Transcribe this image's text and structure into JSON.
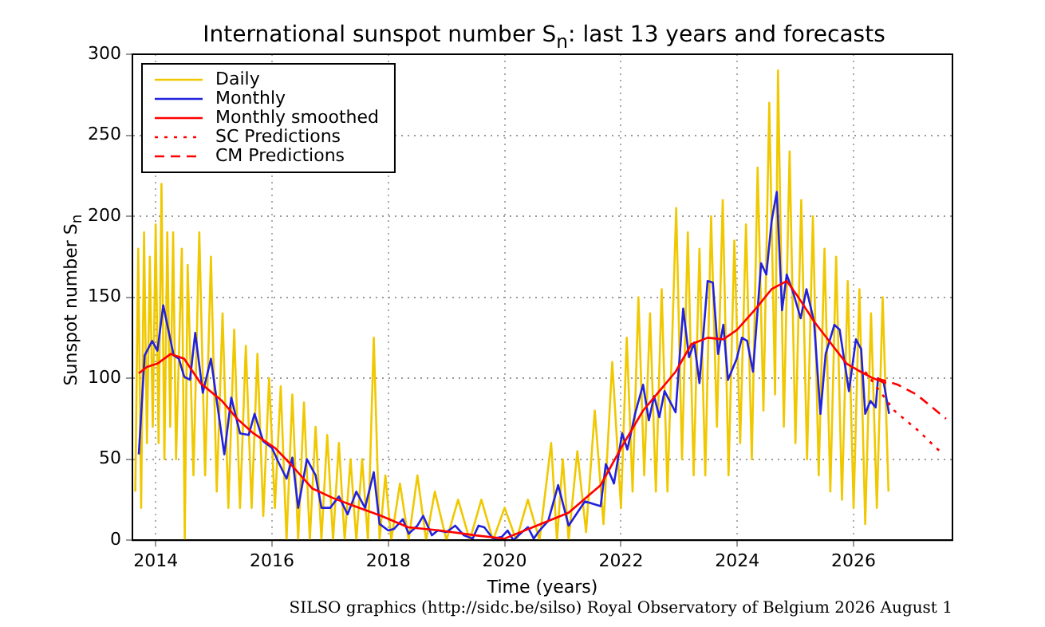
{
  "chart_data": {
    "type": "line",
    "title": "International sunspot number S$_{n}$: last 13 years and forecasts",
    "xlabel": "Time (years)",
    "ylabel": "Sunspot number S$_{n}$",
    "annotations": [
      "SILSO graphics (http://sidc.be/silso)  Royal Observatory of Belgium  2026 August 1"
    ],
    "xlim": [
      2013.6,
      2027.7
    ],
    "xticks": [
      2014,
      2016,
      2018,
      2020,
      2022,
      2024,
      2026
    ],
    "ylim": [
      0,
      300
    ],
    "yticks": [
      0,
      50,
      100,
      150,
      200,
      250,
      300
    ],
    "grid": true,
    "legend": "top left",
    "marker": "none",
    "series": [
      {
        "name": "Daily",
        "color": "#f0c800",
        "line_style": "solid",
        "x": [
          2013.65,
          2013.7,
          2013.75,
          2013.8,
          2013.85,
          2013.9,
          2013.95,
          2014.0,
          2014.05,
          2014.1,
          2014.15,
          2014.2,
          2014.25,
          2014.3,
          2014.35,
          2014.45,
          2014.5,
          2014.55,
          2014.65,
          2014.75,
          2014.85,
          2014.95,
          2015.05,
          2015.15,
          2015.25,
          2015.35,
          2015.45,
          2015.55,
          2015.65,
          2015.75,
          2015.85,
          2015.95,
          2016.05,
          2016.15,
          2016.25,
          2016.35,
          2016.45,
          2016.55,
          2016.65,
          2016.75,
          2016.85,
          2016.95,
          2017.05,
          2017.15,
          2017.25,
          2017.35,
          2017.45,
          2017.55,
          2017.65,
          2017.75,
          2017.85,
          2017.95,
          2018.05,
          2018.2,
          2018.35,
          2018.5,
          2018.65,
          2018.8,
          2019.0,
          2019.2,
          2019.4,
          2019.6,
          2019.8,
          2020.0,
          2020.2,
          2020.4,
          2020.6,
          2020.8,
          2020.9,
          2021.0,
          2021.1,
          2021.25,
          2021.4,
          2021.55,
          2021.7,
          2021.85,
          2022.0,
          2022.1,
          2022.2,
          2022.3,
          2022.4,
          2022.5,
          2022.6,
          2022.7,
          2022.8,
          2022.95,
          2023.05,
          2023.15,
          2023.25,
          2023.35,
          2023.45,
          2023.55,
          2023.65,
          2023.75,
          2023.85,
          2023.95,
          2024.05,
          2024.15,
          2024.25,
          2024.35,
          2024.45,
          2024.55,
          2024.65,
          2024.7,
          2024.8,
          2024.9,
          2025.0,
          2025.1,
          2025.2,
          2025.3,
          2025.4,
          2025.5,
          2025.6,
          2025.7,
          2025.8,
          2025.9,
          2026.0,
          2026.1,
          2026.2,
          2026.3,
          2026.4,
          2026.5,
          2026.6
        ],
        "values": [
          30,
          180,
          20,
          190,
          60,
          175,
          70,
          195,
          60,
          220,
          50,
          190,
          70,
          190,
          50,
          180,
          0,
          170,
          40,
          190,
          40,
          175,
          30,
          140,
          20,
          130,
          20,
          120,
          20,
          115,
          15,
          100,
          20,
          95,
          0,
          90,
          0,
          85,
          0,
          70,
          0,
          65,
          0,
          60,
          0,
          50,
          0,
          50,
          0,
          125,
          0,
          40,
          0,
          35,
          0,
          40,
          0,
          30,
          0,
          25,
          0,
          25,
          0,
          20,
          0,
          25,
          0,
          60,
          0,
          50,
          0,
          55,
          5,
          80,
          10,
          110,
          20,
          125,
          30,
          150,
          40,
          140,
          30,
          155,
          30,
          205,
          50,
          190,
          40,
          180,
          40,
          200,
          70,
          210,
          40,
          185,
          60,
          195,
          50,
          230,
          80,
          270,
          90,
          290,
          70,
          240,
          60,
          210,
          50,
          200,
          40,
          180,
          30,
          175,
          25,
          160,
          20,
          155,
          10,
          140,
          20,
          150,
          30
        ]
      },
      {
        "name": "Monthly",
        "color": "#2222dd",
        "line_style": "solid",
        "x": [
          2013.71,
          2013.81,
          2013.94,
          2014.03,
          2014.13,
          2014.31,
          2014.4,
          2014.49,
          2014.59,
          2014.68,
          2014.81,
          2014.95,
          2015.09,
          2015.18,
          2015.3,
          2015.45,
          2015.6,
          2015.7,
          2015.85,
          2016.0,
          2016.1,
          2016.25,
          2016.35,
          2016.45,
          2016.6,
          2016.75,
          2016.85,
          2017.0,
          2017.15,
          2017.3,
          2017.45,
          2017.6,
          2017.75,
          2017.85,
          2018.0,
          2018.1,
          2018.25,
          2018.35,
          2018.5,
          2018.6,
          2018.75,
          2018.85,
          2019.0,
          2019.15,
          2019.3,
          2019.45,
          2019.55,
          2019.65,
          2019.8,
          2019.95,
          2020.05,
          2020.15,
          2020.3,
          2020.4,
          2020.5,
          2020.6,
          2020.75,
          2020.92,
          2021.1,
          2021.38,
          2021.65,
          2021.74,
          2021.88,
          2022.02,
          2022.11,
          2022.25,
          2022.38,
          2022.48,
          2022.57,
          2022.66,
          2022.75,
          2022.94,
          2023.07,
          2023.17,
          2023.26,
          2023.35,
          2023.49,
          2023.58,
          2023.67,
          2023.76,
          2023.84,
          2023.99,
          2024.08,
          2024.17,
          2024.27,
          2024.41,
          2024.5,
          2024.59,
          2024.68,
          2024.77,
          2024.85,
          2024.96,
          2025.09,
          2025.19,
          2025.32,
          2025.43,
          2025.52,
          2025.67,
          2025.76,
          2025.92,
          2026.04,
          2026.13,
          2026.2,
          2026.29,
          2026.38,
          2026.42,
          2026.52,
          2026.61
        ],
        "values": [
          53,
          114,
          123,
          117,
          145,
          114,
          112,
          101,
          99,
          128,
          91,
          112,
          76,
          53,
          88,
          66,
          65,
          78,
          61,
          57,
          49,
          38,
          51,
          20,
          50,
          40,
          20,
          20,
          27,
          16,
          30,
          20,
          42,
          10,
          6,
          7,
          13,
          4,
          9,
          15,
          3,
          6,
          5,
          9,
          3,
          1,
          9,
          8,
          1,
          2,
          6,
          0,
          5,
          8,
          1,
          6,
          12,
          34,
          9,
          24,
          21,
          47,
          35,
          66,
          56,
          79,
          96,
          74,
          89,
          76,
          92,
          79,
          143,
          113,
          122,
          97,
          160,
          159,
          115,
          133,
          99,
          112,
          125,
          123,
          104,
          171,
          164,
          197,
          215,
          142,
          164,
          153,
          137,
          155,
          135,
          78,
          115,
          133,
          130,
          92,
          124,
          118,
          78,
          86,
          82,
          100,
          97,
          78
        ]
      },
      {
        "name": "Monthly smoothed",
        "color": "#ff0000",
        "line_style": "solid",
        "x": [
          2013.71,
          2013.85,
          2014.03,
          2014.26,
          2014.49,
          2014.77,
          2015.14,
          2015.4,
          2015.68,
          2016.05,
          2016.32,
          2016.69,
          2017.05,
          2017.42,
          2017.88,
          2018.34,
          2018.89,
          2019.5,
          2020.0,
          2020.55,
          2021.1,
          2021.65,
          2022.02,
          2022.38,
          2022.66,
          2022.94,
          2023.21,
          2023.49,
          2023.76,
          2024.0,
          2024.32,
          2024.59,
          2024.85,
          2025.05,
          2025.32,
          2025.6,
          2025.88,
          2026.07,
          2026.33,
          2026.56
        ],
        "values": [
          103,
          107,
          109,
          115,
          112,
          97,
          86,
          75,
          66,
          57,
          47,
          32,
          26,
          21,
          15,
          8,
          6,
          3,
          1,
          9,
          17,
          34,
          58,
          80,
          92,
          104,
          121,
          125,
          124,
          130,
          143,
          155,
          160,
          150,
          135,
          122,
          109,
          105,
          100,
          97
        ]
      },
      {
        "name": "SC Predictions",
        "color": "#ff0000",
        "line_style": "dotted",
        "x": [
          2026.2,
          2026.7,
          2027.1,
          2027.48
        ],
        "values": [
          104,
          80,
          68,
          55
        ]
      },
      {
        "name": "CM Predictions",
        "color": "#ff0000",
        "line_style": "dashed",
        "x": [
          2026.4,
          2026.76,
          2027.08,
          2027.59
        ],
        "values": [
          100,
          96,
          90,
          75
        ]
      }
    ]
  }
}
